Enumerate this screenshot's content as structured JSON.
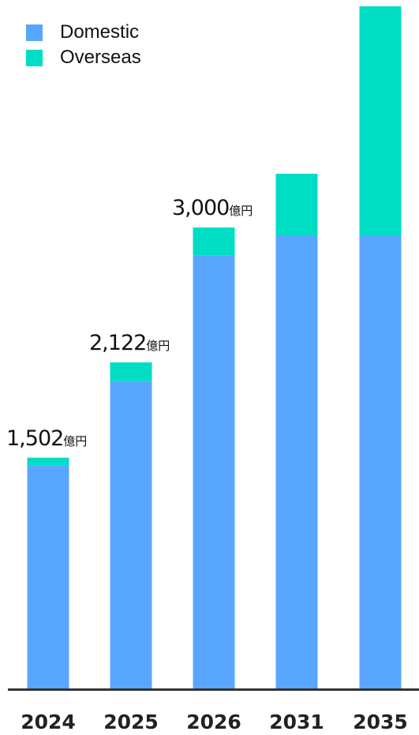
{
  "colors": {
    "domestic": "#58a6ff",
    "overseas": "#00ddc5",
    "axis": "#333333"
  },
  "chart_data": {
    "type": "bar",
    "stacked": true,
    "categories": [
      "2024",
      "2025",
      "2026",
      "2031",
      "2035"
    ],
    "series": [
      {
        "name": "Domestic",
        "values": [
          1450,
          2000,
          2820,
          2950,
          2950
        ]
      },
      {
        "name": "Overseas",
        "values": [
          52,
          122,
          180,
          400,
          1490
        ]
      }
    ],
    "totals": [
      {
        "value": "1,502",
        "unit": "億円"
      },
      {
        "value": "2,122",
        "unit": "億円"
      },
      {
        "value": "3,000",
        "unit": "億円"
      },
      null,
      null
    ],
    "ylim": [
      0,
      4440
    ],
    "legend_position": "top-left",
    "grid": false
  }
}
